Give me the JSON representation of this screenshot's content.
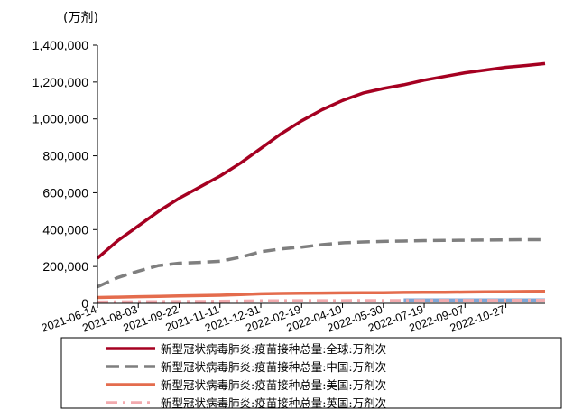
{
  "chart_data": {
    "type": "line",
    "unit_label": "(万剂)",
    "yticks": [
      "0",
      "200,000",
      "400,000",
      "600,000",
      "800,000",
      "1,000,000",
      "1,200,000",
      "1,400,000"
    ],
    "ylim": [
      0,
      1400000
    ],
    "xticks": [
      "2021-06-14",
      "2021-08-03",
      "2021-09-22",
      "2021-11-11",
      "2021-12-31",
      "2022-02-19",
      "2022-04-10",
      "2022-05-30",
      "2022-07-19",
      "2022-09-07",
      "2022-10-27"
    ],
    "x": [
      "2021-06-14",
      "2021-07-09",
      "2021-08-03",
      "2021-08-28",
      "2021-09-22",
      "2021-10-17",
      "2021-11-11",
      "2021-12-06",
      "2021-12-31",
      "2022-01-25",
      "2022-02-19",
      "2022-03-16",
      "2022-04-10",
      "2022-05-05",
      "2022-05-30",
      "2022-06-24",
      "2022-07-19",
      "2022-08-13",
      "2022-09-07",
      "2022-10-02",
      "2022-10-27",
      "2022-11-21",
      "2022-12-14"
    ],
    "series": [
      {
        "name": "新型冠状病毒肺炎:疫苗接种总量:全球:万剂次",
        "color": "#a50021",
        "style": "solid",
        "values": [
          245000,
          340000,
          420000,
          500000,
          570000,
          630000,
          690000,
          760000,
          840000,
          920000,
          990000,
          1050000,
          1100000,
          1140000,
          1165000,
          1185000,
          1210000,
          1230000,
          1250000,
          1265000,
          1280000,
          1290000,
          1300000
        ]
      },
      {
        "name": "新型冠状病毒肺炎:疫苗接种总量:中国:万剂次",
        "color": "#7f7f7f",
        "style": "dashed",
        "values": [
          90000,
          140000,
          175000,
          205000,
          218000,
          222000,
          228000,
          250000,
          280000,
          295000,
          305000,
          318000,
          328000,
          333000,
          336000,
          338000,
          340000,
          341000,
          342000,
          343000,
          344000,
          345000,
          345000
        ]
      },
      {
        "name": "新型冠状病毒肺炎:疫苗接种总量:美国:万剂次",
        "color": "#e46c4d",
        "style": "solid",
        "values": [
          32000,
          34000,
          36000,
          38000,
          40000,
          42000,
          44000,
          48000,
          52000,
          54000,
          55000,
          56000,
          57000,
          57500,
          58000,
          59000,
          59500,
          60000,
          61000,
          62000,
          63000,
          64000,
          65000
        ]
      },
      {
        "name": "新型冠状病毒肺炎:疫苗接种总量:英国:万剂次",
        "color": "#f2aaae",
        "style": "dashdot",
        "values": [
          7000,
          8000,
          8500,
          9000,
          9500,
          10000,
          11000,
          12000,
          13000,
          13500,
          14000,
          14200,
          14400,
          14500,
          14600,
          14700,
          14800,
          15000,
          15200,
          15400,
          15500,
          15600,
          15700
        ]
      },
      {
        "name": "",
        "color": "#7ea6d6",
        "style": "solid",
        "values": [
          null,
          null,
          null,
          null,
          null,
          null,
          null,
          null,
          null,
          null,
          null,
          null,
          null,
          null,
          null,
          18000,
          18000,
          18000,
          18000,
          18000,
          18000,
          18000,
          18000
        ]
      }
    ],
    "legend_position": "bottom",
    "grid": false
  }
}
